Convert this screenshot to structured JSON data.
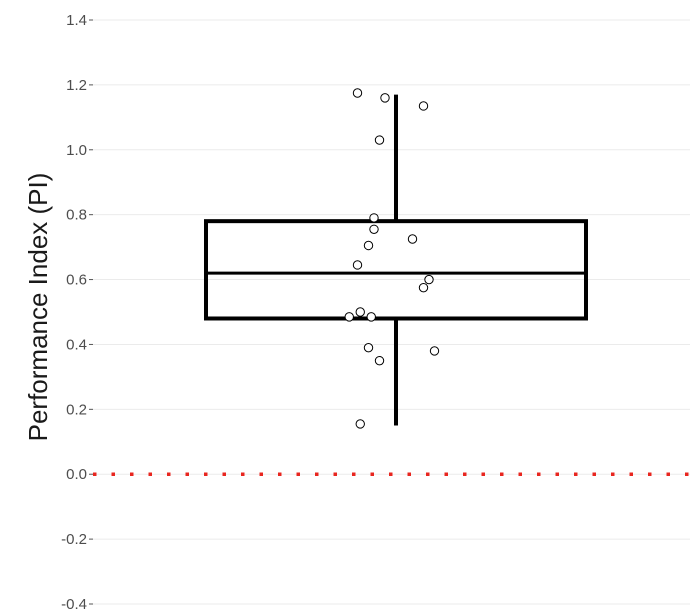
{
  "chart_data": {
    "type": "box",
    "ylabel": "Performance Index (PI)",
    "xlabel": "",
    "ylim": [
      -0.4,
      1.4
    ],
    "yticks": [
      "1.4",
      "1.2",
      "1.0",
      "0.8",
      "0.6",
      "0.4",
      "0.2",
      "0.0",
      "-0.2",
      "-0.4"
    ],
    "grid": true,
    "reference_line": {
      "y": 0.0,
      "style": "dotted",
      "color": "#e8261f"
    },
    "box": {
      "q1": 0.48,
      "median": 0.62,
      "q3": 0.78,
      "whisker_low": 0.15,
      "whisker_high": 1.17
    },
    "points": [
      {
        "x": -0.07,
        "y": 1.175
      },
      {
        "x": -0.02,
        "y": 1.16
      },
      {
        "x": 0.05,
        "y": 1.135
      },
      {
        "x": -0.03,
        "y": 1.03
      },
      {
        "x": -0.04,
        "y": 0.79
      },
      {
        "x": -0.04,
        "y": 0.755
      },
      {
        "x": 0.03,
        "y": 0.725
      },
      {
        "x": -0.05,
        "y": 0.705
      },
      {
        "x": -0.07,
        "y": 0.645
      },
      {
        "x": 0.06,
        "y": 0.6
      },
      {
        "x": 0.05,
        "y": 0.575
      },
      {
        "x": -0.065,
        "y": 0.5
      },
      {
        "x": -0.085,
        "y": 0.485
      },
      {
        "x": -0.045,
        "y": 0.485
      },
      {
        "x": -0.05,
        "y": 0.39
      },
      {
        "x": 0.07,
        "y": 0.38
      },
      {
        "x": -0.03,
        "y": 0.35
      },
      {
        "x": -0.065,
        "y": 0.155
      }
    ],
    "colors": {
      "grid": "#ebebeb",
      "box": "#000000",
      "points": "#000000",
      "reference": "#e8261f"
    }
  }
}
